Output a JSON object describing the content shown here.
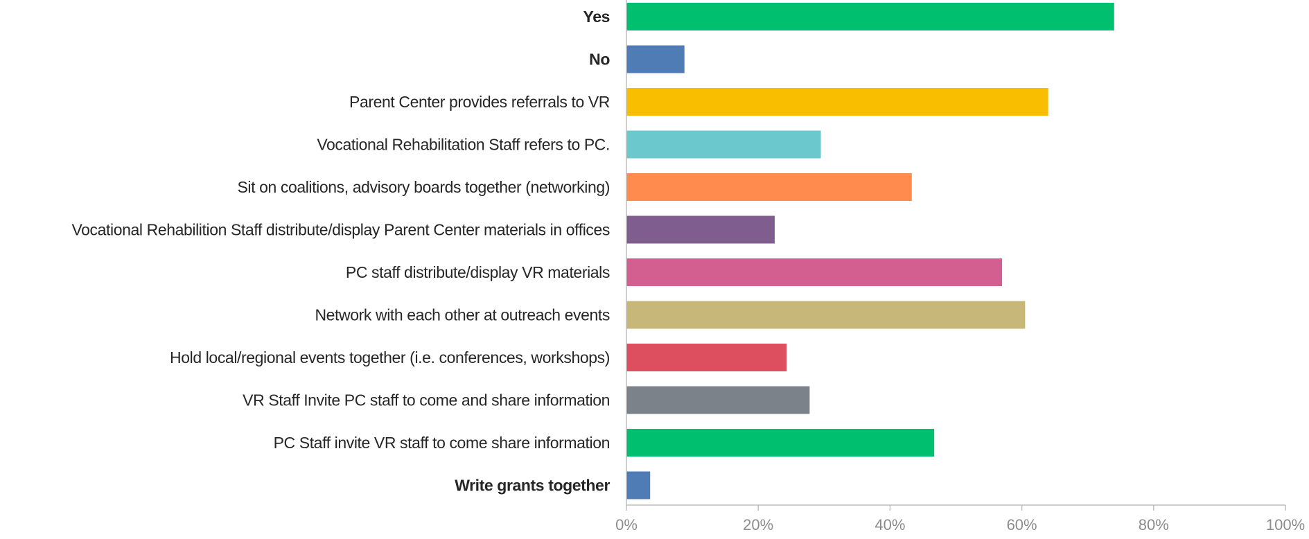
{
  "chart_data": {
    "type": "bar",
    "orientation": "horizontal",
    "title": "",
    "xlabel": "",
    "ylabel": "",
    "xlim": [
      0,
      100
    ],
    "x_unit": "%",
    "grid": false,
    "legend": "none",
    "ticks": [
      "0%",
      "20%",
      "40%",
      "60%",
      "80%",
      "100%"
    ],
    "tick_values": [
      0,
      20,
      40,
      60,
      80,
      100
    ],
    "categories": [
      "Yes",
      "No",
      "Parent Center provides referrals to VR",
      "Vocational Rehabilitation Staff refers to PC.",
      "Sit on coalitions, advisory boards together (networking)",
      "Vocational Rehabilition Staff distribute/display Parent Center materials in offices",
      "PC staff distribute/display VR materials",
      "Network with each other at outreach events",
      "Hold local/regional events together (i.e. conferences, workshops)",
      "VR Staff Invite PC staff to come and share information",
      "PC Staff invite VR staff to come share information",
      "Write grants together"
    ],
    "bold_categories": [
      true,
      true,
      false,
      false,
      false,
      false,
      false,
      false,
      false,
      false,
      false,
      true
    ],
    "values": [
      74,
      8.8,
      64,
      29.5,
      43.3,
      22.5,
      57,
      60.5,
      24.3,
      27.8,
      46.7,
      3.6
    ],
    "colors": [
      "#00bf6f",
      "#507cb6",
      "#f9be00",
      "#6bc8cd",
      "#ff8b4f",
      "#7f5e8f",
      "#d25f90",
      "#c7b879",
      "#dd4f5f",
      "#7b8289",
      "#00bf6f",
      "#507cb6"
    ]
  }
}
